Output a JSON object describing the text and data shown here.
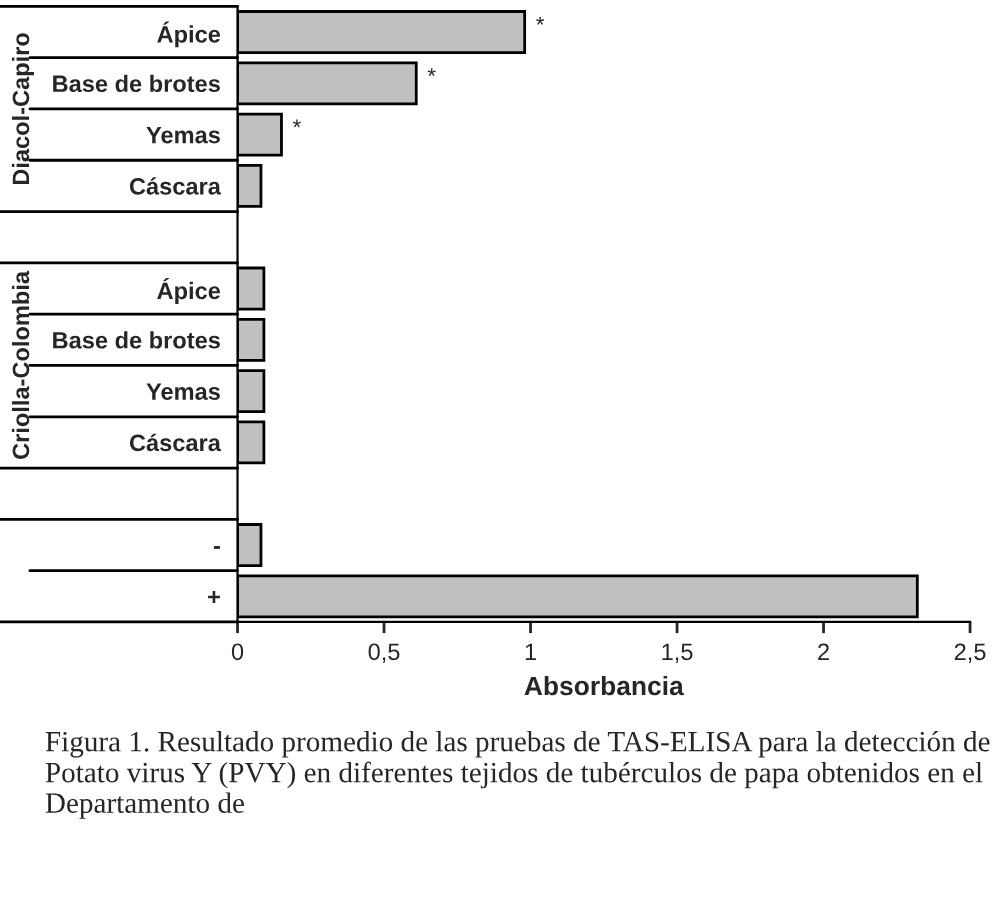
{
  "chart_data": {
    "type": "bar",
    "orientation": "horizontal",
    "categories": [
      "Ápice",
      "Base de brotes",
      "Yemas",
      "Cáscara",
      null,
      "Ápice",
      "Base de brotes",
      "Yemas",
      "Cáscara",
      null,
      "-",
      "+"
    ],
    "values": [
      0.98,
      0.61,
      0.15,
      0.08,
      null,
      0.09,
      0.09,
      0.09,
      0.09,
      null,
      0.08,
      2.32
    ],
    "color": "#c0c0c0",
    "xlabel": "Absorbancia",
    "xlim": [
      0,
      2.5
    ],
    "xticks": [
      0,
      {
        "value": 0.5,
        "label": "0,5"
      },
      1,
      {
        "value": 1.5,
        "label": "1,5"
      },
      2,
      {
        "value": 2.5,
        "label": "2,5"
      }
    ],
    "grid": false,
    "legend": false,
    "annotations": [
      "Diacol-Capiro",
      "Criolla-Colombia",
      {
        "text": "*",
        "x": 0.98,
        "y": "Ápice"
      },
      {
        "text": "*",
        "x": 0.61,
        "y": "Base de brotes"
      },
      {
        "text": "*",
        "x": 0.15,
        "y": "Yemas"
      },
      "Figura 1. Resultado promedio de las pruebas de TAS-ELISA para la detección de Potato virus Y (PVY) en diferentes tejidos de tubérculos de papa obtenidos en el Departamento de"
    ]
  }
}
